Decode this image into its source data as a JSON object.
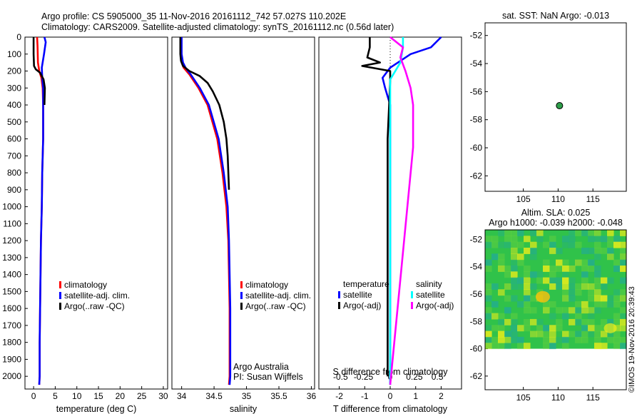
{
  "header": {
    "title1": "Argo profile: CS 5905000_35 11-Nov-2016 20161112_742 57.027S 110.202E",
    "title2": "Climatology: CARS2009. Satellite-adjusted climatology: synTS_20161112.nc (0.56d later)"
  },
  "credit": "©IMOS 19-Nov-2016 20:39:43",
  "chart_data": [
    {
      "type": "line",
      "id": "temperature",
      "xlabel": "temperature (deg C)",
      "ylabel": "",
      "xlim": [
        -2,
        31
      ],
      "ylim": [
        2075,
        0
      ],
      "xticks": [
        0,
        5,
        10,
        15,
        20,
        25,
        30
      ],
      "yticks": [
        0,
        100,
        200,
        300,
        400,
        500,
        600,
        700,
        800,
        900,
        1000,
        1100,
        1200,
        1300,
        1400,
        1500,
        1600,
        1700,
        1800,
        1900,
        2000
      ],
      "legend": [
        "climatology",
        "satellite-adj. clim.",
        "Argo(..raw -QC)"
      ],
      "series": [
        {
          "name": "climatology",
          "color": "#ff0000",
          "x": [
            0.8,
            0.9,
            1.0,
            1.3,
            1.8,
            2.1,
            2.2,
            2.2,
            2.0,
            1.9,
            1.7,
            1.6,
            1.5,
            1.4,
            1.4,
            1.3
          ],
          "y": [
            0,
            50,
            150,
            200,
            240,
            300,
            400,
            600,
            800,
            1000,
            1200,
            1400,
            1600,
            1800,
            2000,
            2050
          ]
        },
        {
          "name": "satellite-adj. clim.",
          "color": "#0000ff",
          "x": [
            2.5,
            2.8,
            2.4,
            1.9,
            2.0,
            2.2,
            2.2,
            2.2,
            2.0,
            1.9,
            1.7,
            1.6,
            1.5,
            1.4,
            1.4,
            1.3
          ],
          "y": [
            0,
            30,
            100,
            180,
            240,
            300,
            400,
            600,
            800,
            1000,
            1200,
            1400,
            1600,
            1800,
            2000,
            2050
          ]
        },
        {
          "name": "Argo(..raw -QC)",
          "color": "#000000",
          "x": [
            0.0,
            0.0,
            0.1,
            0.5,
            1.5,
            2.3,
            2.6,
            2.5
          ],
          "y": [
            0,
            100,
            170,
            190,
            210,
            250,
            300,
            400
          ]
        }
      ]
    },
    {
      "type": "line",
      "id": "salinity",
      "xlabel": "salinity",
      "xlim": [
        33.85,
        36.05
      ],
      "ylim": [
        2075,
        0
      ],
      "xticks": [
        34,
        34.5,
        35,
        35.5,
        36
      ],
      "legend": [
        "climatology",
        "satellite-adj. clim.",
        "Argo(..raw -QC)"
      ],
      "annotations": [
        "Argo Australia",
        "PI: Susan Wijffels"
      ],
      "series": [
        {
          "name": "climatology",
          "color": "#ff0000",
          "x": [
            33.99,
            33.99,
            34.0,
            34.03,
            34.12,
            34.26,
            34.4,
            34.55,
            34.63,
            34.69,
            34.72,
            34.73,
            34.74,
            34.74,
            34.74,
            34.73
          ],
          "y": [
            0,
            100,
            150,
            180,
            220,
            300,
            400,
            600,
            800,
            1000,
            1200,
            1400,
            1600,
            1800,
            2000,
            2050
          ]
        },
        {
          "name": "satellite-adj. clim.",
          "color": "#0000ff",
          "x": [
            34.0,
            34.0,
            34.02,
            34.06,
            34.14,
            34.28,
            34.42,
            34.57,
            34.65,
            34.71,
            34.73,
            34.74,
            34.75,
            34.75,
            34.75,
            34.74
          ],
          "y": [
            0,
            100,
            150,
            180,
            220,
            300,
            400,
            600,
            800,
            1000,
            1200,
            1400,
            1600,
            1800,
            2000,
            2050
          ]
        },
        {
          "name": "Argo(..raw -QC)",
          "color": "#000000",
          "x": [
            33.98,
            33.98,
            33.99,
            34.02,
            34.12,
            34.28,
            34.4,
            34.48,
            34.58,
            34.65,
            34.69,
            34.71,
            34.72,
            34.73
          ],
          "y": [
            0,
            100,
            140,
            170,
            200,
            230,
            270,
            320,
            400,
            500,
            600,
            700,
            800,
            900
          ],
          "mask_depths_above": 1100
        }
      ]
    },
    {
      "type": "line",
      "id": "difference",
      "xlabel": "T difference from climatology",
      "xlabel2": "S difference from climatology",
      "xlim": [
        -2.8,
        2.8
      ],
      "ylim": [
        2075,
        0
      ],
      "xticks": [
        -2,
        -1,
        0,
        1,
        2
      ],
      "xticks2": [
        "-0.5",
        "-0.25",
        "0",
        "0.25",
        "0.5"
      ],
      "legend_titles": [
        "temperature",
        "salinity"
      ],
      "legend": [
        "satellite",
        "Argo(-adj)",
        "satellite",
        "Argo(-adj)"
      ],
      "series": [
        {
          "name": "satellite",
          "group": "temperature",
          "color": "#0000ff",
          "x": [
            2.0,
            1.6,
            0.8,
            0.0,
            -0.3,
            -0.2,
            0.0,
            0.0
          ],
          "y": [
            0,
            60,
            100,
            180,
            240,
            300,
            400,
            2050
          ]
        },
        {
          "name": "Argo(-adj)",
          "group": "temperature",
          "color": "#000000",
          "x": [
            -0.8,
            -0.8,
            -0.9,
            -0.4,
            -1.1,
            0.0,
            0.0,
            -0.1,
            -0.1
          ],
          "y": [
            0,
            60,
            120,
            150,
            170,
            200,
            260,
            600,
            2000
          ]
        },
        {
          "name": "satellite",
          "group": "salinity",
          "color": "#00ffff",
          "x": [
            0.5,
            0.5,
            0.4,
            0.0,
            0.0,
            0.0
          ],
          "y": [
            0,
            60,
            150,
            250,
            700,
            2050
          ]
        },
        {
          "name": "Argo(-adj)",
          "group": "salinity",
          "color": "#ff00ff",
          "x": [
            0.0,
            0.5,
            0.4,
            0.6,
            0.8,
            0.9,
            0.9,
            0.0
          ],
          "y": [
            0,
            60,
            120,
            200,
            300,
            400,
            650,
            2050
          ]
        }
      ]
    },
    {
      "type": "scatter",
      "id": "sst-map",
      "title": "sat. SST: NaN Argo: -0.013",
      "xlim": [
        99.5,
        119.8
      ],
      "ylim": [
        -63.1,
        -51.1
      ],
      "xticks": [
        105,
        110,
        115
      ],
      "yticks": [
        -52,
        -54,
        -56,
        -58,
        -60,
        -62
      ],
      "points": [
        {
          "x": 110.2,
          "y": -57.0,
          "color": "#2e9e4a"
        }
      ]
    },
    {
      "type": "heatmap",
      "id": "sla-map",
      "title": "Altim. SLA: 0.025",
      "subtitle": "Argo h1000: -0.039 h2000: -0.048",
      "xlim": [
        99.5,
        119.8
      ],
      "ylim": [
        -63.0,
        -51.3
      ],
      "xticks": [
        105,
        110,
        115
      ],
      "yticks": [
        -52,
        -54,
        -56,
        -58,
        -60,
        -62
      ],
      "data_extent_lat": [
        -60.0,
        -51.3
      ],
      "colors": {
        "base": "#30c24a",
        "high": "#f0ee18",
        "low": "#20a8a0"
      }
    }
  ]
}
